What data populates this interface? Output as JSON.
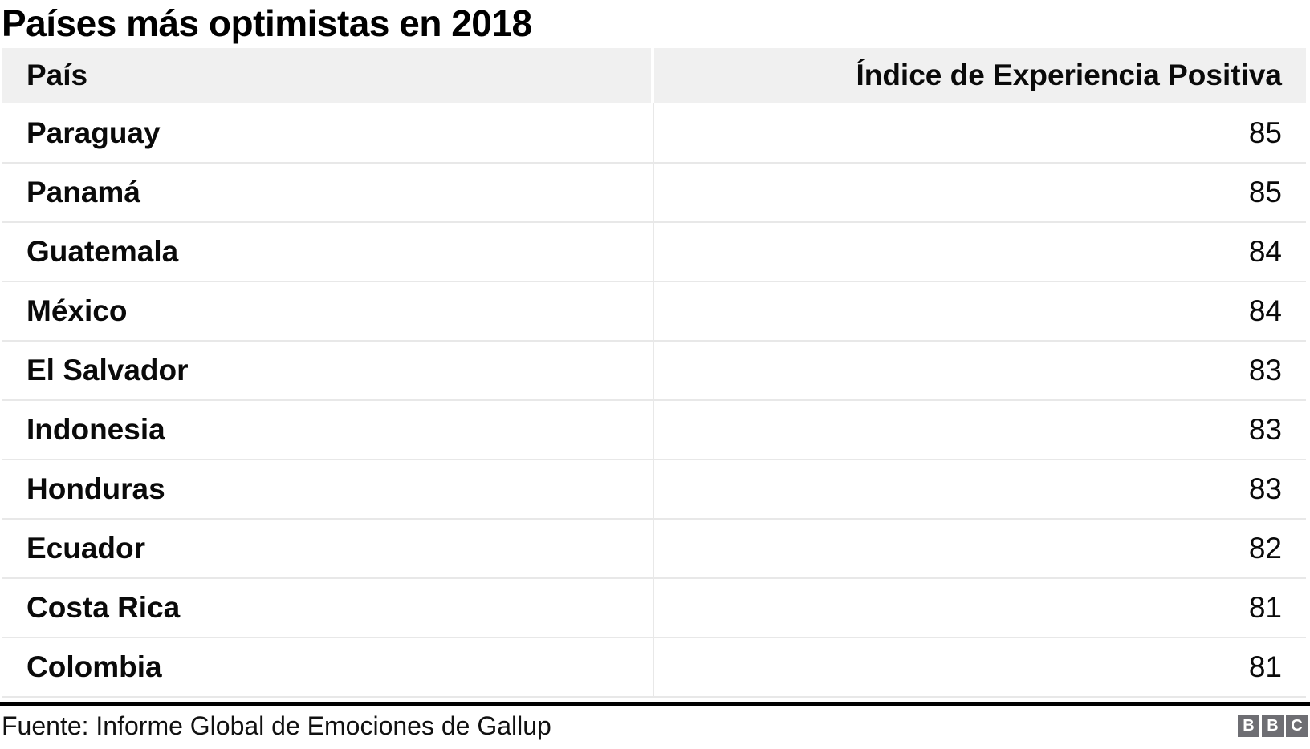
{
  "chart_data": {
    "type": "table",
    "title": "Países más optimistas en 2018",
    "columns": [
      "País",
      "Índice de Experiencia Positiva"
    ],
    "rows": [
      [
        "Paraguay",
        85
      ],
      [
        "Panamá",
        85
      ],
      [
        "Guatemala",
        84
      ],
      [
        "México",
        84
      ],
      [
        "El Salvador",
        83
      ],
      [
        "Indonesia",
        83
      ],
      [
        "Honduras",
        83
      ],
      [
        "Ecuador",
        82
      ],
      [
        "Costa Rica",
        81
      ],
      [
        "Colombia",
        81
      ]
    ],
    "source": "Fuente: Informe Global de Emociones de Gallup",
    "value_range": [
      81,
      85
    ],
    "legend": "none",
    "grid": "row-separators"
  },
  "branding": {
    "logo_letters": [
      "B",
      "B",
      "C"
    ]
  },
  "colors": {
    "header_bg": "#f0f0f0",
    "row_border": "#e8e8e8",
    "footer_rule": "#000000",
    "logo_bg": "#6e6e73",
    "text": "#0a0a0a"
  }
}
